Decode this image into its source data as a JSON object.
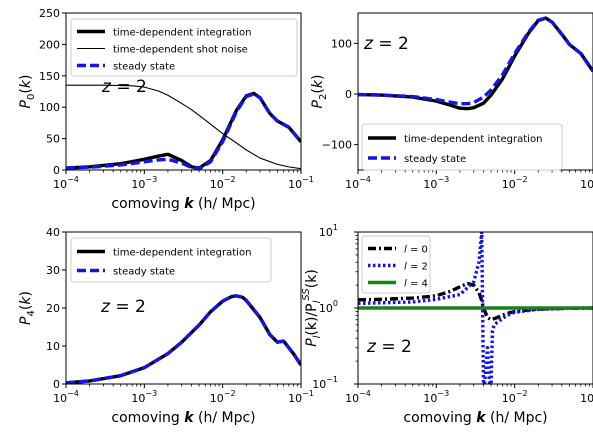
{
  "figure": {
    "colors": {
      "black": "#000000",
      "blue": "#1414e6",
      "green": "#1e7d1e",
      "text": "#000000"
    }
  },
  "chart_data": [
    {
      "type": "line",
      "id": "p0",
      "xlabel": "comoving k (h/ Mpc)",
      "xlabel_parts": [
        "comoving ",
        "k",
        " (h/ Mpc)"
      ],
      "ylabel": "P0(k)",
      "ylabel_parts": [
        "P",
        "0",
        "(k)"
      ],
      "xscale": "log",
      "yscale": "linear",
      "xlim": [
        0.0001,
        0.1
      ],
      "ylim": [
        0,
        250
      ],
      "yticks": [
        0,
        50,
        100,
        150,
        200,
        250
      ],
      "ytick_labels": [
        "0",
        "50",
        "100",
        "150",
        "200",
        "250"
      ],
      "annotation": "z = 2",
      "legend_position": "top-left",
      "series": [
        {
          "name": "time-dependent integration",
          "style": "solid-thick",
          "color": "#000000",
          "x": [
            0.0001,
            0.0002,
            0.0005,
            0.001,
            0.0015,
            0.002,
            0.003,
            0.004,
            0.005,
            0.007,
            0.01,
            0.015,
            0.02,
            0.025,
            0.03,
            0.04,
            0.05,
            0.07,
            0.1
          ],
          "y": [
            3,
            5,
            10,
            17,
            22,
            25,
            15,
            5,
            3,
            15,
            48,
            95,
            118,
            122,
            115,
            90,
            78,
            68,
            45
          ]
        },
        {
          "name": "time-dependent shot noise",
          "style": "solid-thin",
          "color": "#000000",
          "x": [
            0.0001,
            0.0003,
            0.0005,
            0.0007,
            0.001,
            0.0015,
            0.002,
            0.003,
            0.004,
            0.005,
            0.007,
            0.01,
            0.015,
            0.02,
            0.03,
            0.05,
            0.07,
            0.1
          ],
          "y": [
            135,
            135,
            134.5,
            134,
            132,
            126,
            119,
            106,
            96,
            87,
            73,
            58,
            43,
            32,
            19,
            9,
            5,
            2
          ]
        },
        {
          "name": "steady state",
          "style": "dashed",
          "color": "#1414e6",
          "x": [
            0.0001,
            0.0002,
            0.0005,
            0.001,
            0.0015,
            0.002,
            0.003,
            0.004,
            0.005,
            0.007,
            0.01,
            0.015,
            0.02,
            0.025,
            0.03,
            0.04,
            0.05,
            0.07,
            0.1
          ],
          "y": [
            3,
            4.5,
            8,
            13,
            16,
            17,
            11,
            4,
            2,
            13,
            45,
            93,
            117,
            121,
            115,
            90,
            78,
            68,
            45
          ]
        }
      ]
    },
    {
      "type": "line",
      "id": "p2",
      "xlabel": "",
      "ylabel": "P2(k)",
      "ylabel_parts": [
        "P",
        "2",
        "(k)"
      ],
      "xscale": "log",
      "yscale": "linear",
      "xlim": [
        0.0001,
        0.1
      ],
      "ylim": [
        -150,
        160
      ],
      "yticks": [
        -100,
        0,
        100
      ],
      "ytick_labels": [
        "−100",
        "0",
        "100"
      ],
      "annotation": "z = 2",
      "legend_position": "bottom-right",
      "series": [
        {
          "name": "time-dependent integration",
          "style": "solid-thick",
          "color": "#000000",
          "x": [
            0.0001,
            0.0002,
            0.0005,
            0.001,
            0.0015,
            0.002,
            0.0025,
            0.003,
            0.004,
            0.005,
            0.007,
            0.01,
            0.015,
            0.02,
            0.025,
            0.03,
            0.04,
            0.05,
            0.07,
            0.1
          ],
          "y": [
            -1,
            -2,
            -6,
            -14,
            -22,
            -28,
            -29,
            -27,
            -18,
            -2,
            30,
            75,
            120,
            145,
            150,
            142,
            118,
            98,
            80,
            45
          ]
        },
        {
          "name": "steady state",
          "style": "dashed",
          "color": "#1414e6",
          "x": [
            0.0001,
            0.0002,
            0.0005,
            0.001,
            0.0015,
            0.002,
            0.0025,
            0.003,
            0.004,
            0.005,
            0.007,
            0.01,
            0.015,
            0.02,
            0.025,
            0.03,
            0.04,
            0.05,
            0.07,
            0.1
          ],
          "y": [
            -1,
            -2,
            -5,
            -11,
            -16,
            -19,
            -19,
            -17,
            -6,
            8,
            38,
            80,
            122,
            146,
            150,
            142,
            118,
            98,
            80,
            45
          ]
        }
      ]
    },
    {
      "type": "line",
      "id": "p4",
      "xlabel": "comoving k (h/ Mpc)",
      "xlabel_parts": [
        "comoving ",
        "k",
        " (h/ Mpc)"
      ],
      "ylabel": "P4(k)",
      "ylabel_parts": [
        "P",
        "4",
        "(k)"
      ],
      "xscale": "log",
      "yscale": "linear",
      "xlim": [
        0.0001,
        0.1
      ],
      "ylim": [
        0,
        40
      ],
      "yticks": [
        0,
        10,
        20,
        30,
        40
      ],
      "ytick_labels": [
        "0",
        "10",
        "20",
        "30",
        "40"
      ],
      "annotation": "z = 2",
      "legend_position": "top-left",
      "series": [
        {
          "name": "time-dependent integration",
          "style": "solid-thick",
          "color": "#000000",
          "x": [
            0.0001,
            0.0002,
            0.0005,
            0.001,
            0.002,
            0.003,
            0.005,
            0.007,
            0.01,
            0.013,
            0.015,
            0.018,
            0.02,
            0.03,
            0.04,
            0.05,
            0.06,
            0.07,
            0.08,
            0.1
          ],
          "y": [
            0.3,
            0.8,
            2.2,
            4.3,
            8,
            11,
            15.5,
            19,
            21.8,
            23,
            23.2,
            22.8,
            22,
            17.5,
            13,
            11,
            11.3,
            9.5,
            8,
            5
          ]
        },
        {
          "name": "steady state",
          "style": "dashed",
          "color": "#1414e6",
          "x": [
            0.0001,
            0.0002,
            0.0005,
            0.001,
            0.002,
            0.003,
            0.005,
            0.007,
            0.01,
            0.013,
            0.015,
            0.018,
            0.02,
            0.03,
            0.04,
            0.05,
            0.06,
            0.07,
            0.08,
            0.1
          ],
          "y": [
            0.3,
            0.8,
            2.2,
            4.3,
            8,
            11,
            15.5,
            19,
            21.8,
            23,
            23.2,
            22.8,
            22,
            17.5,
            13,
            11,
            11.3,
            9.5,
            8,
            5
          ]
        }
      ]
    },
    {
      "type": "line",
      "id": "ratio",
      "xlabel": "comoving k (h/ Mpc)",
      "xlabel_parts": [
        "comoving ",
        "k",
        " (h/ Mpc)"
      ],
      "ylabel": "Pl(k)/Pl^SS(k)",
      "ylabel_parts": [
        "P",
        "l",
        "(k)/P",
        "l",
        "SS",
        "(k)"
      ],
      "xscale": "log",
      "yscale": "log",
      "xlim": [
        0.0001,
        0.1
      ],
      "ylim": [
        0.1,
        10
      ],
      "annotation": "z = 2",
      "legend_position": "top-left",
      "series": [
        {
          "name": "l = 0",
          "name_parts": [
            "l",
            " = 0"
          ],
          "style": "dashdot",
          "color": "#000000",
          "x": [
            0.0001,
            0.0002,
            0.0005,
            0.001,
            0.0015,
            0.002,
            0.0025,
            0.003,
            0.0035,
            0.0038,
            0.004,
            0.0045,
            0.005,
            0.006,
            0.008,
            0.01,
            0.02,
            0.05,
            0.1
          ],
          "y": [
            1.28,
            1.3,
            1.35,
            1.45,
            1.65,
            1.9,
            2.1,
            2.0,
            1.6,
            1.25,
            1.0,
            0.75,
            0.7,
            0.75,
            0.85,
            0.9,
            0.97,
            0.99,
            1.0
          ]
        },
        {
          "name": "l = 2",
          "name_parts": [
            "l",
            " = 2"
          ],
          "style": "dotted",
          "color": "#1414e6",
          "x": [
            0.0001,
            0.0005,
            0.001,
            0.002,
            0.003,
            0.0035,
            0.0038,
            0.004,
            0.0041,
            0.0042,
            0.0045,
            0.0048,
            0.005,
            0.0052,
            0.0055,
            0.006,
            0.008,
            0.01,
            0.02,
            0.05,
            0.1
          ],
          "y": [
            1.15,
            1.2,
            1.3,
            1.5,
            2.2,
            4,
            10,
            0.1,
            0.1,
            0.12,
            0.3,
            0.1,
            0.1,
            0.5,
            0.6,
            0.65,
            0.8,
            0.88,
            0.96,
            0.99,
            1.0
          ]
        },
        {
          "name": "l = 4",
          "name_parts": [
            "l",
            " = 4"
          ],
          "style": "solid-thick",
          "color": "#1e7d1e",
          "x": [
            0.0001,
            0.1
          ],
          "y": [
            1.0,
            1.0
          ]
        }
      ]
    }
  ]
}
